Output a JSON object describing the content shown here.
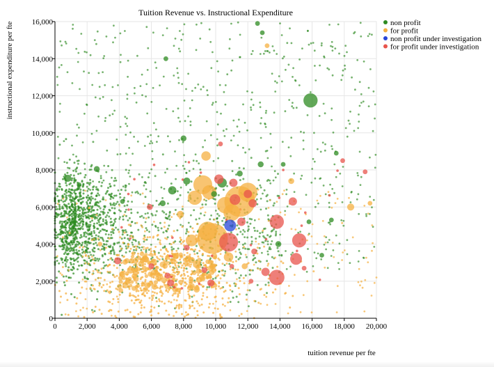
{
  "chart_data": {
    "type": "scatter",
    "title": "Tuition Revenue vs. Instructional Expenditure",
    "xlabel": "tuition revenue per fte",
    "ylabel": "instructional expenditure per fte",
    "xlim": [
      0,
      20000
    ],
    "ylim": [
      0,
      16000
    ],
    "x_ticks": [
      "0",
      "2,000",
      "4,000",
      "6,000",
      "8,000",
      "10,000",
      "12,000",
      "14,000",
      "16,000",
      "18,000",
      "20,000"
    ],
    "y_ticks": [
      "0",
      "2,000",
      "4,000",
      "6,000",
      "8,000",
      "10,000",
      "12,000",
      "14,000",
      "16,000"
    ],
    "grid": true,
    "legend_position": "top-right",
    "series": [
      {
        "name": "non profit",
        "color": "#2e8b22",
        "highlight_points": [
          {
            "x": 15900,
            "y": 11750,
            "size": 6
          },
          {
            "x": 800,
            "y": 7550,
            "size": 3
          },
          {
            "x": 1500,
            "y": 7200,
            "size": 2
          },
          {
            "x": 2600,
            "y": 8050,
            "size": 2.5
          },
          {
            "x": 7300,
            "y": 6900,
            "size": 3.5
          },
          {
            "x": 6700,
            "y": 6200,
            "size": 2.5
          },
          {
            "x": 8200,
            "y": 7400,
            "size": 3
          },
          {
            "x": 10400,
            "y": 7300,
            "size": 4
          },
          {
            "x": 11500,
            "y": 7800,
            "size": 2.5
          },
          {
            "x": 12800,
            "y": 8300,
            "size": 2.5
          },
          {
            "x": 14200,
            "y": 8300,
            "size": 2
          },
          {
            "x": 13900,
            "y": 4000,
            "size": 2.5
          },
          {
            "x": 15800,
            "y": 5200,
            "size": 2
          },
          {
            "x": 17200,
            "y": 5300,
            "size": 2
          },
          {
            "x": 6900,
            "y": 14000,
            "size": 2
          },
          {
            "x": 12600,
            "y": 15900,
            "size": 2
          },
          {
            "x": 12900,
            "y": 15400,
            "size": 2
          },
          {
            "x": 8000,
            "y": 9700,
            "size": 2.5
          },
          {
            "x": 4200,
            "y": 6300,
            "size": 2
          },
          {
            "x": 9900,
            "y": 6700,
            "size": 2.5
          },
          {
            "x": 17500,
            "y": 8900,
            "size": 2
          },
          {
            "x": 16600,
            "y": 3400,
            "size": 2
          }
        ]
      },
      {
        "name": "for profit",
        "color": "#f5b041",
        "highlight_points": [
          {
            "x": 11500,
            "y": 6300,
            "size": 13
          },
          {
            "x": 9800,
            "y": 4300,
            "size": 13
          },
          {
            "x": 9500,
            "y": 4700,
            "size": 8
          },
          {
            "x": 9200,
            "y": 7200,
            "size": 8
          },
          {
            "x": 12000,
            "y": 6800,
            "size": 8
          },
          {
            "x": 9600,
            "y": 6800,
            "size": 6
          },
          {
            "x": 11000,
            "y": 5700,
            "size": 7
          },
          {
            "x": 8700,
            "y": 6500,
            "size": 6
          },
          {
            "x": 9400,
            "y": 8750,
            "size": 4
          },
          {
            "x": 10600,
            "y": 6100,
            "size": 7
          },
          {
            "x": 8500,
            "y": 4200,
            "size": 5
          },
          {
            "x": 10800,
            "y": 3300,
            "size": 4
          },
          {
            "x": 13200,
            "y": 14700,
            "size": 2
          },
          {
            "x": 18400,
            "y": 6000,
            "size": 3
          },
          {
            "x": 7800,
            "y": 5600,
            "size": 3
          },
          {
            "x": 5600,
            "y": 3200,
            "size": 3
          },
          {
            "x": 8800,
            "y": 2900,
            "size": 3
          },
          {
            "x": 4700,
            "y": 2600,
            "size": 3
          },
          {
            "x": 11800,
            "y": 2800,
            "size": 2.5
          },
          {
            "x": 2800,
            "y": 4000,
            "size": 2
          },
          {
            "x": 6200,
            "y": 1700,
            "size": 2.5
          },
          {
            "x": 14700,
            "y": 7400,
            "size": 2.5
          },
          {
            "x": 19600,
            "y": 6200,
            "size": 2
          }
        ]
      },
      {
        "name": "non profit under investigation",
        "color": "#2845d8",
        "highlight_points": [
          {
            "x": 10900,
            "y": 5000,
            "size": 5
          }
        ]
      },
      {
        "name": "for profit under investigation",
        "color": "#e8544c",
        "highlight_points": [
          {
            "x": 10800,
            "y": 4100,
            "size": 8
          },
          {
            "x": 11200,
            "y": 6400,
            "size": 4.5
          },
          {
            "x": 13800,
            "y": 5200,
            "size": 6
          },
          {
            "x": 15200,
            "y": 4200,
            "size": 6
          },
          {
            "x": 15000,
            "y": 3200,
            "size": 5
          },
          {
            "x": 13800,
            "y": 2200,
            "size": 6.5
          },
          {
            "x": 13100,
            "y": 2500,
            "size": 3.5
          },
          {
            "x": 12400,
            "y": 3600,
            "size": 2.5
          },
          {
            "x": 11600,
            "y": 5200,
            "size": 3.5
          },
          {
            "x": 12000,
            "y": 6700,
            "size": 3.5
          },
          {
            "x": 10200,
            "y": 7500,
            "size": 4
          },
          {
            "x": 11100,
            "y": 7300,
            "size": 3.5
          },
          {
            "x": 14800,
            "y": 6300,
            "size": 3.5
          },
          {
            "x": 12300,
            "y": 6200,
            "size": 3.5
          },
          {
            "x": 3900,
            "y": 3100,
            "size": 3
          },
          {
            "x": 6000,
            "y": 2800,
            "size": 2.5
          },
          {
            "x": 7000,
            "y": 2300,
            "size": 2.5
          },
          {
            "x": 7200,
            "y": 1900,
            "size": 3
          },
          {
            "x": 9700,
            "y": 1900,
            "size": 3
          },
          {
            "x": 5900,
            "y": 6000,
            "size": 2.5
          },
          {
            "x": 8200,
            "y": 3800,
            "size": 2.5
          },
          {
            "x": 9300,
            "y": 2600,
            "size": 2.5
          },
          {
            "x": 11000,
            "y": 2800,
            "size": 2
          },
          {
            "x": 12200,
            "y": 2000,
            "size": 2
          },
          {
            "x": 10300,
            "y": 9400,
            "size": 2
          },
          {
            "x": 17900,
            "y": 8500,
            "size": 2
          },
          {
            "x": 19300,
            "y": 7900,
            "size": 2
          },
          {
            "x": 15500,
            "y": 2700,
            "size": 2
          }
        ]
      }
    ]
  }
}
